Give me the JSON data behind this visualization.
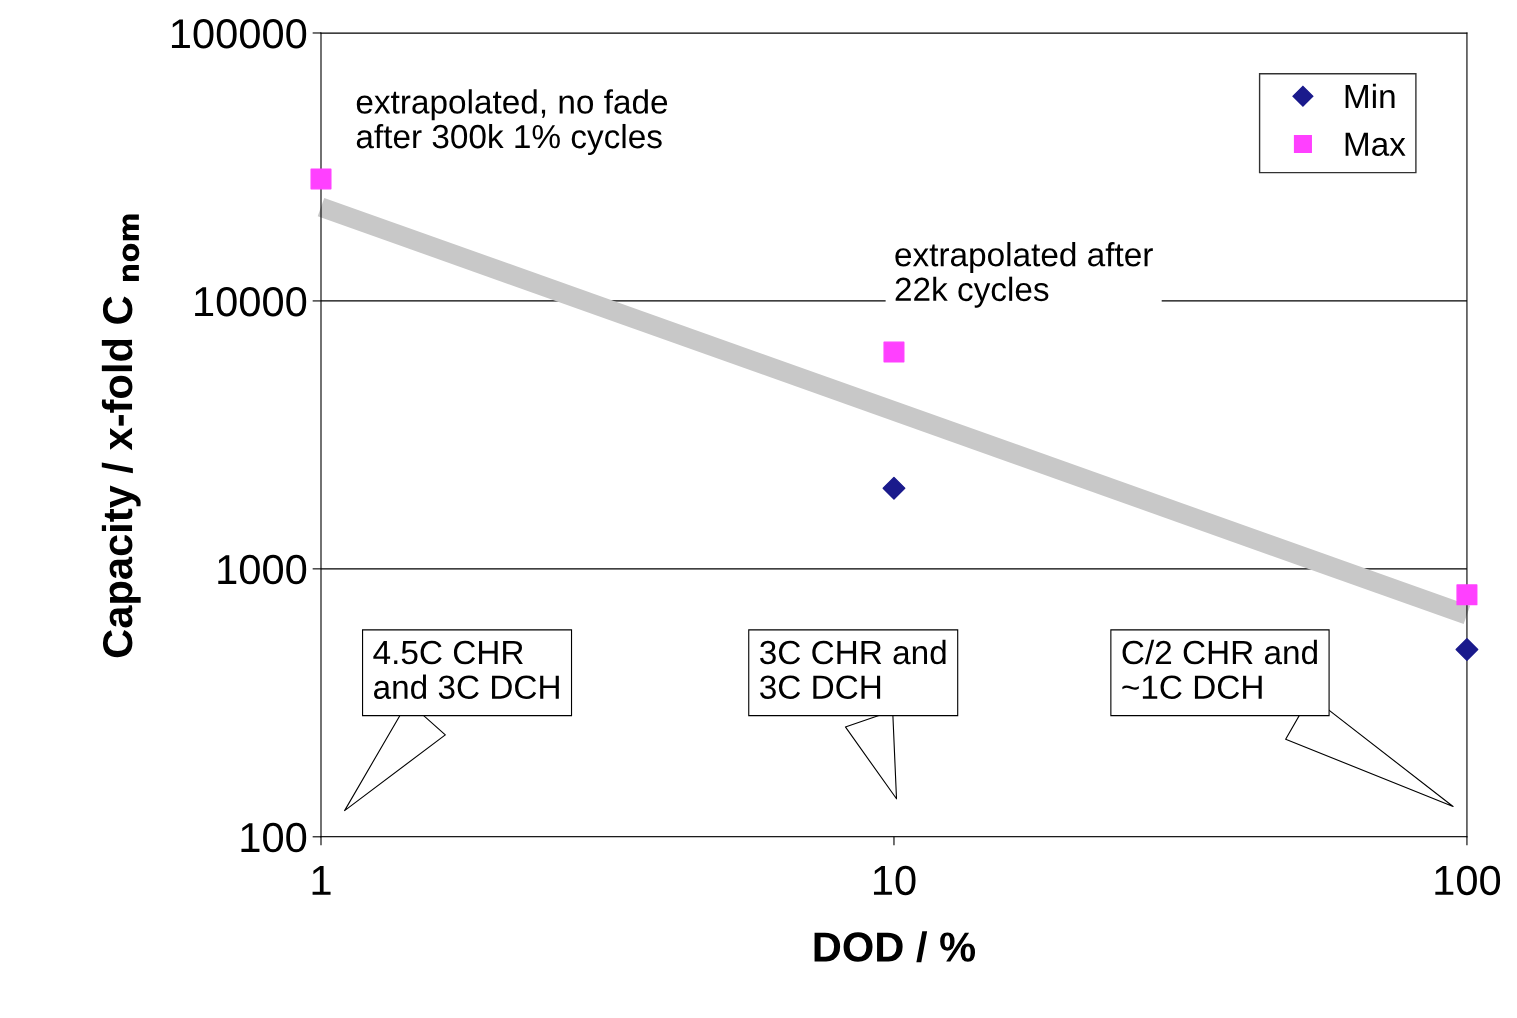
{
  "chart_data": {
    "type": "scatter",
    "xlabel": "DOD / %",
    "ylabel": "Capacity / x-fold C $_{nom}$",
    "log": "xy",
    "xlim": [
      1,
      100
    ],
    "xticks": [
      1,
      10,
      100
    ],
    "ylim": [
      100,
      100000
    ],
    "yticks": [
      100,
      1000,
      10000,
      100000
    ],
    "grid": "y",
    "legend": "top right",
    "series": [
      {
        "type": "line",
        "x": [
          1,
          100
        ],
        "values": [
          22400,
          673
        ],
        "color": "#c8c8c8",
        "marker": "none",
        "line_style": "solid"
      },
      {
        "name": "Min",
        "x": [
          10,
          100
        ],
        "values": [
          2000,
          500
        ],
        "color": "#1a1a8c",
        "marker": "diamond"
      },
      {
        "name": "Max",
        "x": [
          1,
          10,
          100
        ],
        "values": [
          28500,
          6450,
          800
        ],
        "color": "#ff40ff",
        "marker": "square"
      }
    ],
    "annotations": [
      "extrapolated, no fade\nafter 300k 1% cycles",
      "extrapolated after\n22k cycles",
      "4.5C CHR\nand 3C DCH",
      "3C CHR and\n3C DCH",
      "C/2 CHR and\n~1C DCH"
    ]
  }
}
